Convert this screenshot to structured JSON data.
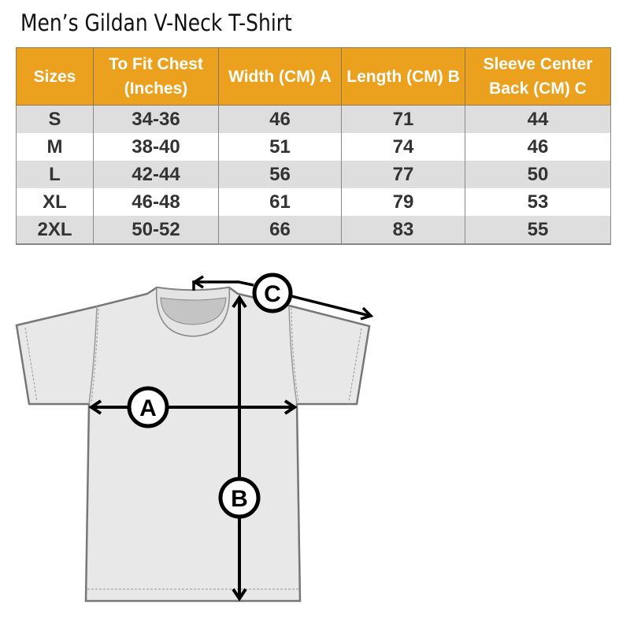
{
  "title": "Men’s Gildan V-Neck T-Shirt",
  "table": {
    "headers": [
      "Sizes",
      "To Fit Chest (Inches)",
      "Width (CM) A",
      "Length  (CM) B",
      "Sleeve Center Back (CM) C"
    ],
    "rows": [
      [
        "S",
        "34-36",
        "46",
        "71",
        "44"
      ],
      [
        "M",
        "38-40",
        "51",
        "74",
        "46"
      ],
      [
        "L",
        "42-44",
        "56",
        "77",
        "50"
      ],
      [
        "XL",
        "46-48",
        "61",
        "79",
        "53"
      ],
      [
        "2XL",
        "50-52",
        "66",
        "83",
        "55"
      ]
    ]
  },
  "diagram": {
    "label_a": "A",
    "label_b": "B",
    "label_c": "C"
  },
  "colors": {
    "header": "#eba11e",
    "row_alt": "#dedede",
    "shirt": "#e8e8e8"
  }
}
